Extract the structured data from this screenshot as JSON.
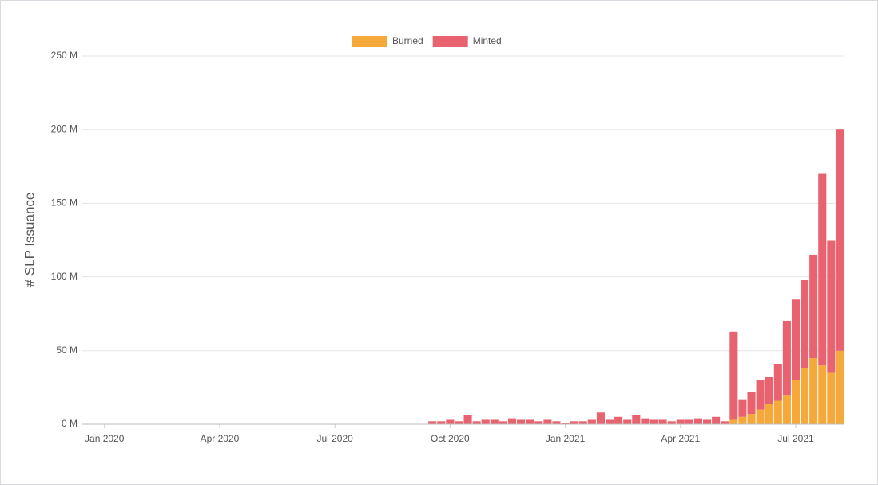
{
  "chart_data": {
    "type": "stacked-bar",
    "y_label": "# SLP Issuance",
    "categories": [
      null,
      null,
      "Jan 2020",
      null,
      null,
      null,
      null,
      null,
      null,
      null,
      null,
      null,
      null,
      null,
      null,
      "Apr 2020",
      null,
      null,
      null,
      null,
      null,
      null,
      null,
      null,
      null,
      null,
      null,
      null,
      "Jul 2020",
      null,
      null,
      null,
      null,
      null,
      null,
      null,
      null,
      null,
      null,
      null,
      null,
      "Oct 2020",
      null,
      null,
      null,
      null,
      null,
      null,
      null,
      null,
      null,
      null,
      null,
      null,
      "Jan 2021",
      null,
      null,
      null,
      null,
      null,
      null,
      null,
      null,
      null,
      null,
      null,
      null,
      "Apr 2021",
      null,
      null,
      null,
      null,
      null,
      null,
      null,
      null,
      null,
      null,
      null,
      null,
      "Jul 2021",
      null,
      null,
      null,
      null,
      null
    ],
    "series": [
      {
        "name": "Burned",
        "color": "#f5a93b",
        "values": [
          0,
          0,
          0,
          0,
          0,
          0,
          0,
          0,
          0,
          0,
          0,
          0,
          0,
          0,
          0,
          0,
          0,
          0,
          0,
          0,
          0,
          0,
          0,
          0,
          0,
          0,
          0,
          0,
          0,
          0,
          0,
          0,
          0,
          0,
          0,
          0,
          0,
          0,
          0,
          0,
          0,
          0,
          0,
          0,
          0,
          0,
          0,
          0,
          0,
          0,
          0,
          0,
          0,
          0,
          0,
          0,
          0,
          0,
          0,
          0,
          0,
          0,
          0,
          0,
          0,
          0,
          0,
          0,
          0,
          0,
          0,
          0,
          0,
          3,
          5,
          7,
          10,
          14,
          16,
          20,
          30,
          38,
          45,
          40,
          35,
          50
        ]
      },
      {
        "name": "Minted",
        "color": "#e8636f",
        "values": [
          0.2,
          0.2,
          0.2,
          0.2,
          0.2,
          0.2,
          0.2,
          0.2,
          0.2,
          0.2,
          0.2,
          0.2,
          0.2,
          0.2,
          0.2,
          0.2,
          0.2,
          0.2,
          0.2,
          0.2,
          0.2,
          0.2,
          0.2,
          0.2,
          0.2,
          0.2,
          0.2,
          0.2,
          0.2,
          0.2,
          0.2,
          0.2,
          0.2,
          0.2,
          0.2,
          0.2,
          0.2,
          0.2,
          0.2,
          2,
          2,
          3,
          2,
          6,
          2,
          3,
          3,
          2,
          4,
          3,
          3,
          2,
          3,
          2,
          1,
          2,
          2,
          3,
          8,
          3,
          5,
          3,
          6,
          4,
          3,
          3,
          2,
          3,
          3,
          4,
          3,
          5,
          2,
          60,
          12,
          15,
          20,
          18,
          25,
          50,
          55,
          60,
          70,
          130,
          90,
          150
        ]
      }
    ],
    "ylim": [
      0,
      250
    ],
    "yticks": [
      {
        "value": 0,
        "label": "0 M"
      },
      {
        "value": 50,
        "label": "50 M"
      },
      {
        "value": 100,
        "label": "100 M"
      },
      {
        "value": 150,
        "label": "150 M"
      },
      {
        "value": 200,
        "label": "200 M"
      },
      {
        "value": 250,
        "label": "250 M"
      }
    ],
    "grid": true,
    "legend": "top"
  }
}
